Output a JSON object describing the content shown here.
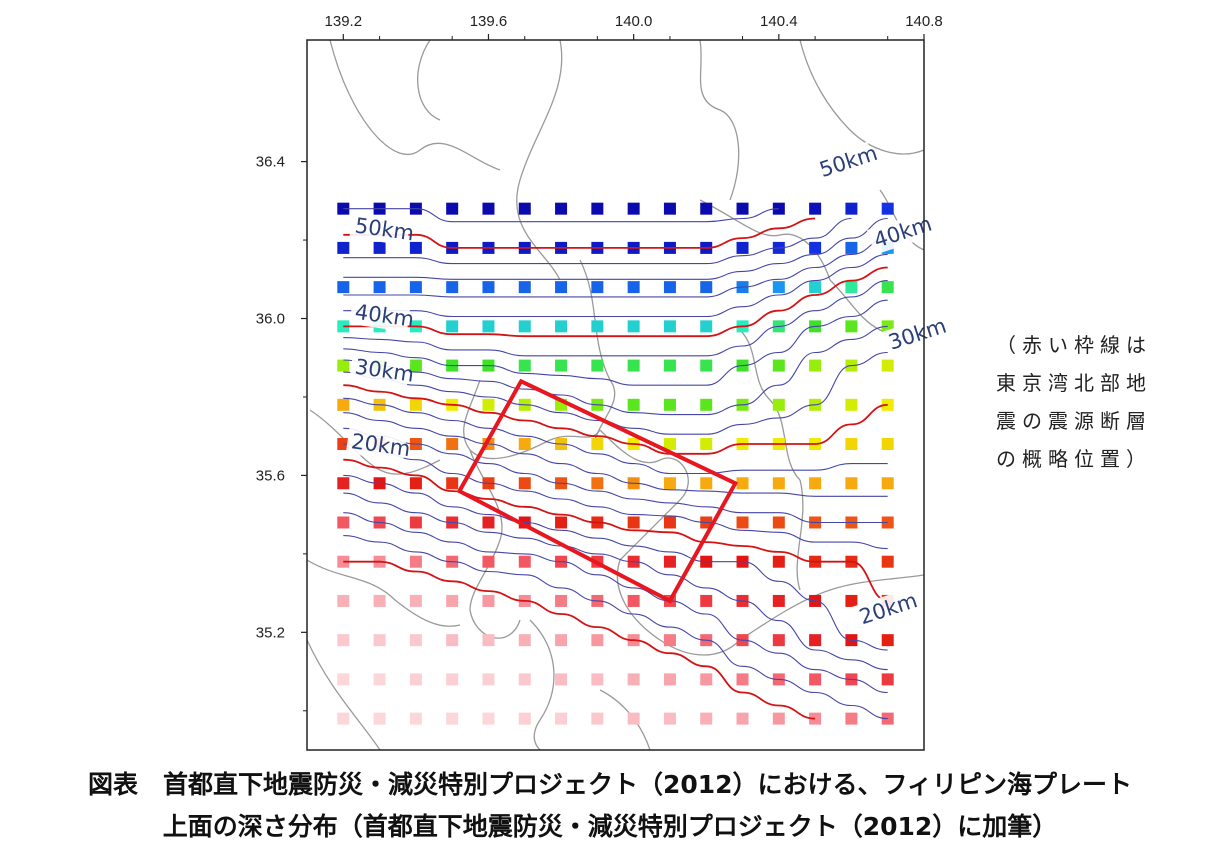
{
  "chart_data": {
    "type": "map",
    "title": "",
    "x_ticks": [
      {
        "value": 139.2,
        "label": "139.2"
      },
      {
        "value": 139.6,
        "label": "139.6"
      },
      {
        "value": 140.0,
        "label": "140.0"
      },
      {
        "value": 140.4,
        "label": "140.4"
      },
      {
        "value": 140.8,
        "label": "140.8"
      }
    ],
    "y_ticks": [
      {
        "value": 36.4,
        "label": "36.4"
      },
      {
        "value": 36.0,
        "label": "36.0"
      },
      {
        "value": 35.6,
        "label": "35.6"
      },
      {
        "value": 35.2,
        "label": "35.2"
      }
    ],
    "xlim": [
      139.1,
      140.8
    ],
    "ylim": [
      34.9,
      36.71
    ],
    "grid": {
      "lon_start": 139.2,
      "lon_step": 0.1,
      "lon_count": 16,
      "lat_start": 34.98,
      "lat_step": 0.1,
      "lat_count": 14
    },
    "depth_rows_km": [
      [
        3,
        3,
        3,
        3,
        3,
        4,
        4,
        5,
        6,
        6,
        7,
        8,
        9,
        10,
        11,
        12
      ],
      [
        3,
        3,
        4,
        4,
        4,
        5,
        6,
        6,
        7,
        8,
        9,
        11,
        12,
        13,
        14,
        15
      ],
      [
        5,
        5,
        5,
        6,
        6,
        7,
        8,
        9,
        10,
        11,
        12,
        14,
        15,
        17,
        18,
        19
      ],
      [
        7,
        7,
        7,
        8,
        9,
        10,
        11,
        12,
        13,
        14,
        15,
        16,
        17,
        18,
        19,
        20
      ],
      [
        10,
        10,
        11,
        12,
        13,
        13,
        14,
        15,
        16,
        17,
        18,
        18,
        19,
        20,
        20,
        21
      ],
      [
        13,
        14,
        15,
        16,
        17,
        18,
        19,
        20,
        21,
        21,
        22,
        23,
        23,
        24,
        24,
        24
      ],
      [
        17,
        18,
        19,
        21,
        22,
        23,
        24,
        25,
        26,
        27,
        27,
        27,
        27,
        27,
        27,
        27
      ],
      [
        22,
        23,
        24,
        25,
        26,
        27,
        28,
        29,
        30,
        31,
        31,
        30,
        30,
        30,
        29,
        29
      ],
      [
        27,
        28,
        29,
        30,
        31,
        32,
        33,
        34,
        35,
        35,
        35,
        34,
        33,
        32,
        31,
        30
      ],
      [
        33,
        34,
        35,
        36,
        36,
        37,
        37,
        37,
        37,
        37,
        37,
        36,
        35,
        33,
        32,
        31
      ],
      [
        40,
        40,
        40,
        41,
        41,
        41,
        41,
        41,
        41,
        41,
        41,
        40,
        38,
        36,
        35,
        34
      ],
      [
        45,
        45,
        45,
        45,
        45,
        45,
        45,
        45,
        45,
        45,
        45,
        44,
        43,
        41,
        39,
        37
      ],
      [
        49,
        49,
        49,
        50,
        50,
        50,
        50,
        50,
        50,
        50,
        50,
        49,
        48,
        47,
        45,
        43
      ],
      [
        52,
        52,
        52,
        53,
        53,
        53,
        53,
        53,
        53,
        53,
        53,
        53,
        52,
        51,
        49,
        47
      ]
    ],
    "contour_labels": [
      {
        "text": "50km",
        "lon": 139.23,
        "lat": 36.22
      },
      {
        "text": "50km",
        "lon": 140.52,
        "lat": 36.36
      },
      {
        "text": "40km",
        "lon": 139.23,
        "lat": 36.0
      },
      {
        "text": "40km",
        "lon": 140.67,
        "lat": 36.18
      },
      {
        "text": "30km",
        "lon": 139.23,
        "lat": 35.86
      },
      {
        "text": "30km",
        "lon": 140.71,
        "lat": 35.92
      },
      {
        "text": "20km",
        "lon": 139.22,
        "lat": 35.67
      },
      {
        "text": "20km",
        "lon": 140.63,
        "lat": 35.22
      }
    ],
    "fault_box": {
      "label": "東京湾北部地震の震源断層の概略位置",
      "corners": [
        [
          139.69,
          35.84
        ],
        [
          140.28,
          35.58
        ],
        [
          140.1,
          35.28
        ],
        [
          139.52,
          35.56
        ]
      ],
      "color": "#e8161e"
    },
    "colors": {
      "deep": "#0b0bc4",
      "contour_blue": "#4646a8",
      "contour_red": "#d41414",
      "coast": "#9a9a9a"
    }
  },
  "note": {
    "lines": [
      "（赤い枠線は",
      "東京湾北部地",
      "震の震源断層",
      "の概略位置）"
    ]
  },
  "caption": {
    "line1": "図表　首都直下地震防災・減災特別プロジェクト（2012）における、フィリピン海プレート",
    "line2": "上面の深さ分布（首都直下地震防災・減災特別プロジェクト（2012）に加筆）"
  }
}
